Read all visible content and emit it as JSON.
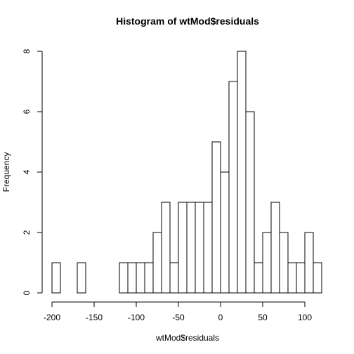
{
  "chart_data": {
    "type": "bar",
    "title": "Histogram of wtMod$residuals",
    "xlabel": "wtMod$residuals",
    "ylabel": "Frequency",
    "bin_width": 10,
    "bin_start": -200,
    "bin_end": 120,
    "counts": [
      1,
      0,
      0,
      1,
      0,
      0,
      0,
      0,
      1,
      1,
      1,
      1,
      2,
      3,
      1,
      3,
      3,
      3,
      3,
      5,
      4,
      7,
      8,
      6,
      1,
      2,
      3,
      2,
      1,
      1,
      2,
      1
    ],
    "xlim": [
      -200,
      120
    ],
    "ylim": [
      0,
      8
    ],
    "x_ticks": [
      -200,
      -150,
      -100,
      -50,
      0,
      50,
      100
    ],
    "y_ticks": [
      0,
      2,
      4,
      6,
      8
    ]
  }
}
